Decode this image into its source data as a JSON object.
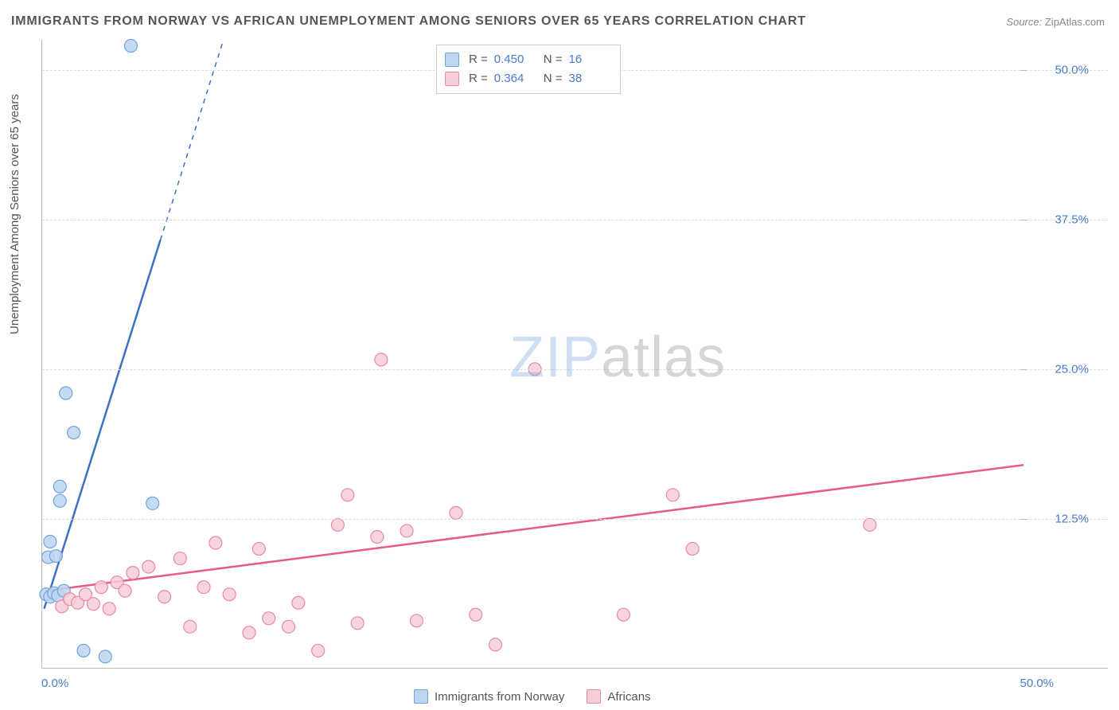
{
  "title": "IMMIGRANTS FROM NORWAY VS AFRICAN UNEMPLOYMENT AMONG SENIORS OVER 65 YEARS CORRELATION CHART",
  "source_label": "Source:",
  "source_value": "ZipAtlas.com",
  "y_axis_label": "Unemployment Among Seniors over 65 years",
  "watermark_a": "ZIP",
  "watermark_b": "atlas",
  "chart": {
    "type": "scatter-with-regression",
    "xlim": [
      0,
      50
    ],
    "ylim": [
      0,
      52.5
    ],
    "x_ticks": [
      {
        "v": 0,
        "label": "0.0%"
      },
      {
        "v": 50,
        "label": "50.0%"
      }
    ],
    "y_ticks": [
      {
        "v": 12.5,
        "label": "12.5%"
      },
      {
        "v": 25.0,
        "label": "25.0%"
      },
      {
        "v": 37.5,
        "label": "37.5%"
      },
      {
        "v": 50.0,
        "label": "50.0%"
      }
    ],
    "grid_color": "#dddddd",
    "axis_color": "#bbbbbb",
    "background_color": "#ffffff",
    "tick_label_color": "#4a7bd0",
    "series": [
      {
        "name": "Immigrants from Norway",
        "marker_fill": "#bcd5f0",
        "marker_stroke": "#6fa3dc",
        "marker_radius": 8,
        "line_color": "#3b72c4",
        "line_width": 2.5,
        "R": "0.450",
        "N": "16",
        "regression": {
          "x1": 0.1,
          "y1": 5.0,
          "x2": 9.2,
          "y2": 52.5,
          "solid_until_x": 6.0
        },
        "points": [
          {
            "x": 0.2,
            "y": 6.2
          },
          {
            "x": 0.4,
            "y": 6.0
          },
          {
            "x": 0.6,
            "y": 6.3
          },
          {
            "x": 0.8,
            "y": 6.1
          },
          {
            "x": 0.3,
            "y": 9.3
          },
          {
            "x": 0.7,
            "y": 9.4
          },
          {
            "x": 0.4,
            "y": 10.6
          },
          {
            "x": 0.9,
            "y": 14.0
          },
          {
            "x": 0.9,
            "y": 15.2
          },
          {
            "x": 1.6,
            "y": 19.7
          },
          {
            "x": 1.2,
            "y": 23.0
          },
          {
            "x": 4.5,
            "y": 52.0
          },
          {
            "x": 5.6,
            "y": 13.8
          },
          {
            "x": 3.2,
            "y": 1.0
          },
          {
            "x": 2.1,
            "y": 1.5
          },
          {
            "x": 1.1,
            "y": 6.5
          }
        ]
      },
      {
        "name": "Africans",
        "marker_fill": "#f7cdd8",
        "marker_stroke": "#e88aa5",
        "marker_radius": 8,
        "line_color": "#e85a8a",
        "line_width": 2.5,
        "R": "0.364",
        "N": "38",
        "regression": {
          "x1": 0.2,
          "y1": 6.5,
          "x2": 49.8,
          "y2": 17.0,
          "solid_until_x": 49.8
        },
        "points": [
          {
            "x": 1.0,
            "y": 5.2
          },
          {
            "x": 1.4,
            "y": 5.8
          },
          {
            "x": 1.8,
            "y": 5.5
          },
          {
            "x": 2.2,
            "y": 6.2
          },
          {
            "x": 2.6,
            "y": 5.4
          },
          {
            "x": 3.0,
            "y": 6.8
          },
          {
            "x": 3.4,
            "y": 5.0
          },
          {
            "x": 3.8,
            "y": 7.2
          },
          {
            "x": 4.2,
            "y": 6.5
          },
          {
            "x": 4.6,
            "y": 8.0
          },
          {
            "x": 5.4,
            "y": 8.5
          },
          {
            "x": 6.2,
            "y": 6.0
          },
          {
            "x": 7.0,
            "y": 9.2
          },
          {
            "x": 7.5,
            "y": 3.5
          },
          {
            "x": 8.2,
            "y": 6.8
          },
          {
            "x": 8.8,
            "y": 10.5
          },
          {
            "x": 9.5,
            "y": 6.2
          },
          {
            "x": 10.5,
            "y": 3.0
          },
          {
            "x": 11.0,
            "y": 10.0
          },
          {
            "x": 11.5,
            "y": 4.2
          },
          {
            "x": 12.5,
            "y": 3.5
          },
          {
            "x": 13.0,
            "y": 5.5
          },
          {
            "x": 14.0,
            "y": 1.5
          },
          {
            "x": 15.0,
            "y": 12.0
          },
          {
            "x": 15.5,
            "y": 14.5
          },
          {
            "x": 16.0,
            "y": 3.8
          },
          {
            "x": 17.0,
            "y": 11.0
          },
          {
            "x": 17.2,
            "y": 25.8
          },
          {
            "x": 18.5,
            "y": 11.5
          },
          {
            "x": 19.0,
            "y": 4.0
          },
          {
            "x": 21.0,
            "y": 13.0
          },
          {
            "x": 22.0,
            "y": 4.5
          },
          {
            "x": 23.0,
            "y": 2.0
          },
          {
            "x": 25.0,
            "y": 25.0
          },
          {
            "x": 29.5,
            "y": 4.5
          },
          {
            "x": 32.0,
            "y": 14.5
          },
          {
            "x": 33.0,
            "y": 10.0
          },
          {
            "x": 42.0,
            "y": 12.0
          }
        ]
      }
    ]
  },
  "legend_bottom": [
    {
      "label": "Immigrants from Norway",
      "fill": "#bcd5f0",
      "stroke": "#6fa3dc"
    },
    {
      "label": "Africans",
      "fill": "#f7cdd8",
      "stroke": "#e88aa5"
    }
  ]
}
